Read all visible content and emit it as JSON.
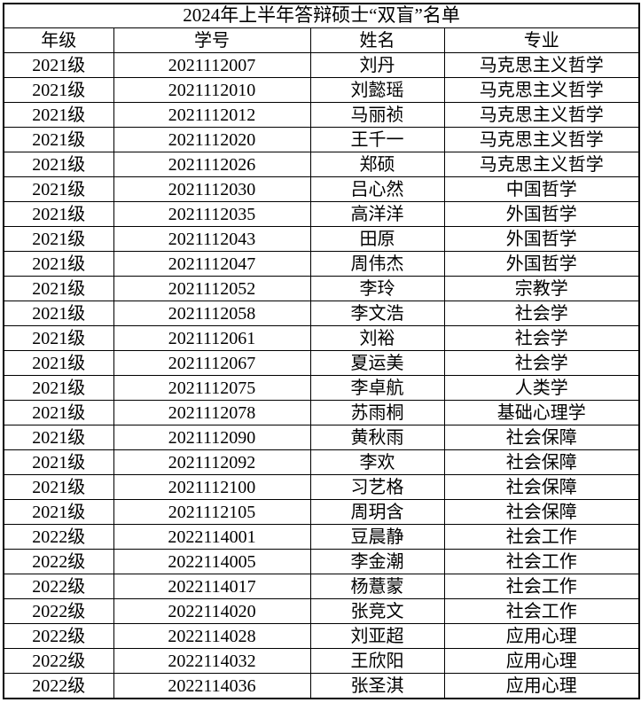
{
  "table": {
    "title": "2024年上半年答辩硕士“双盲”名单",
    "columns": [
      "年级",
      "学号",
      "姓名",
      "专业"
    ],
    "rows": [
      [
        "2021级",
        "2021112007",
        "刘丹",
        "马克思主义哲学"
      ],
      [
        "2021级",
        "2021112010",
        "刘懿瑶",
        "马克思主义哲学"
      ],
      [
        "2021级",
        "2021112012",
        "马丽祯",
        "马克思主义哲学"
      ],
      [
        "2021级",
        "2021112020",
        "王千一",
        "马克思主义哲学"
      ],
      [
        "2021级",
        "2021112026",
        "郑硕",
        "马克思主义哲学"
      ],
      [
        "2021级",
        "2021112030",
        "吕心然",
        "中国哲学"
      ],
      [
        "2021级",
        "2021112035",
        "高洋洋",
        "外国哲学"
      ],
      [
        "2021级",
        "2021112043",
        "田原",
        "外国哲学"
      ],
      [
        "2021级",
        "2021112047",
        "周伟杰",
        "外国哲学"
      ],
      [
        "2021级",
        "2021112052",
        "李玲",
        "宗教学"
      ],
      [
        "2021级",
        "2021112058",
        "李文浩",
        "社会学"
      ],
      [
        "2021级",
        "2021112061",
        "刘裕",
        "社会学"
      ],
      [
        "2021级",
        "2021112067",
        "夏运美",
        "社会学"
      ],
      [
        "2021级",
        "2021112075",
        "李卓航",
        "人类学"
      ],
      [
        "2021级",
        "2021112078",
        "苏雨桐",
        "基础心理学"
      ],
      [
        "2021级",
        "2021112090",
        "黄秋雨",
        "社会保障"
      ],
      [
        "2021级",
        "2021112092",
        "李欢",
        "社会保障"
      ],
      [
        "2021级",
        "2021112100",
        "习艺格",
        "社会保障"
      ],
      [
        "2021级",
        "2021112105",
        "周玥含",
        "社会保障"
      ],
      [
        "2022级",
        "2022114001",
        "豆晨静",
        "社会工作"
      ],
      [
        "2022级",
        "2022114005",
        "李金潮",
        "社会工作"
      ],
      [
        "2022级",
        "2022114017",
        "杨薏蒙",
        "社会工作"
      ],
      [
        "2022级",
        "2022114020",
        "张竞文",
        "社会工作"
      ],
      [
        "2022级",
        "2022114028",
        "刘亚超",
        "应用心理"
      ],
      [
        "2022级",
        "2022114032",
        "王欣阳",
        "应用心理"
      ],
      [
        "2022级",
        "2022114036",
        "张圣淇",
        "应用心理"
      ]
    ],
    "colors": {
      "border": "#000000",
      "text": "#000000",
      "background": "#ffffff"
    }
  }
}
